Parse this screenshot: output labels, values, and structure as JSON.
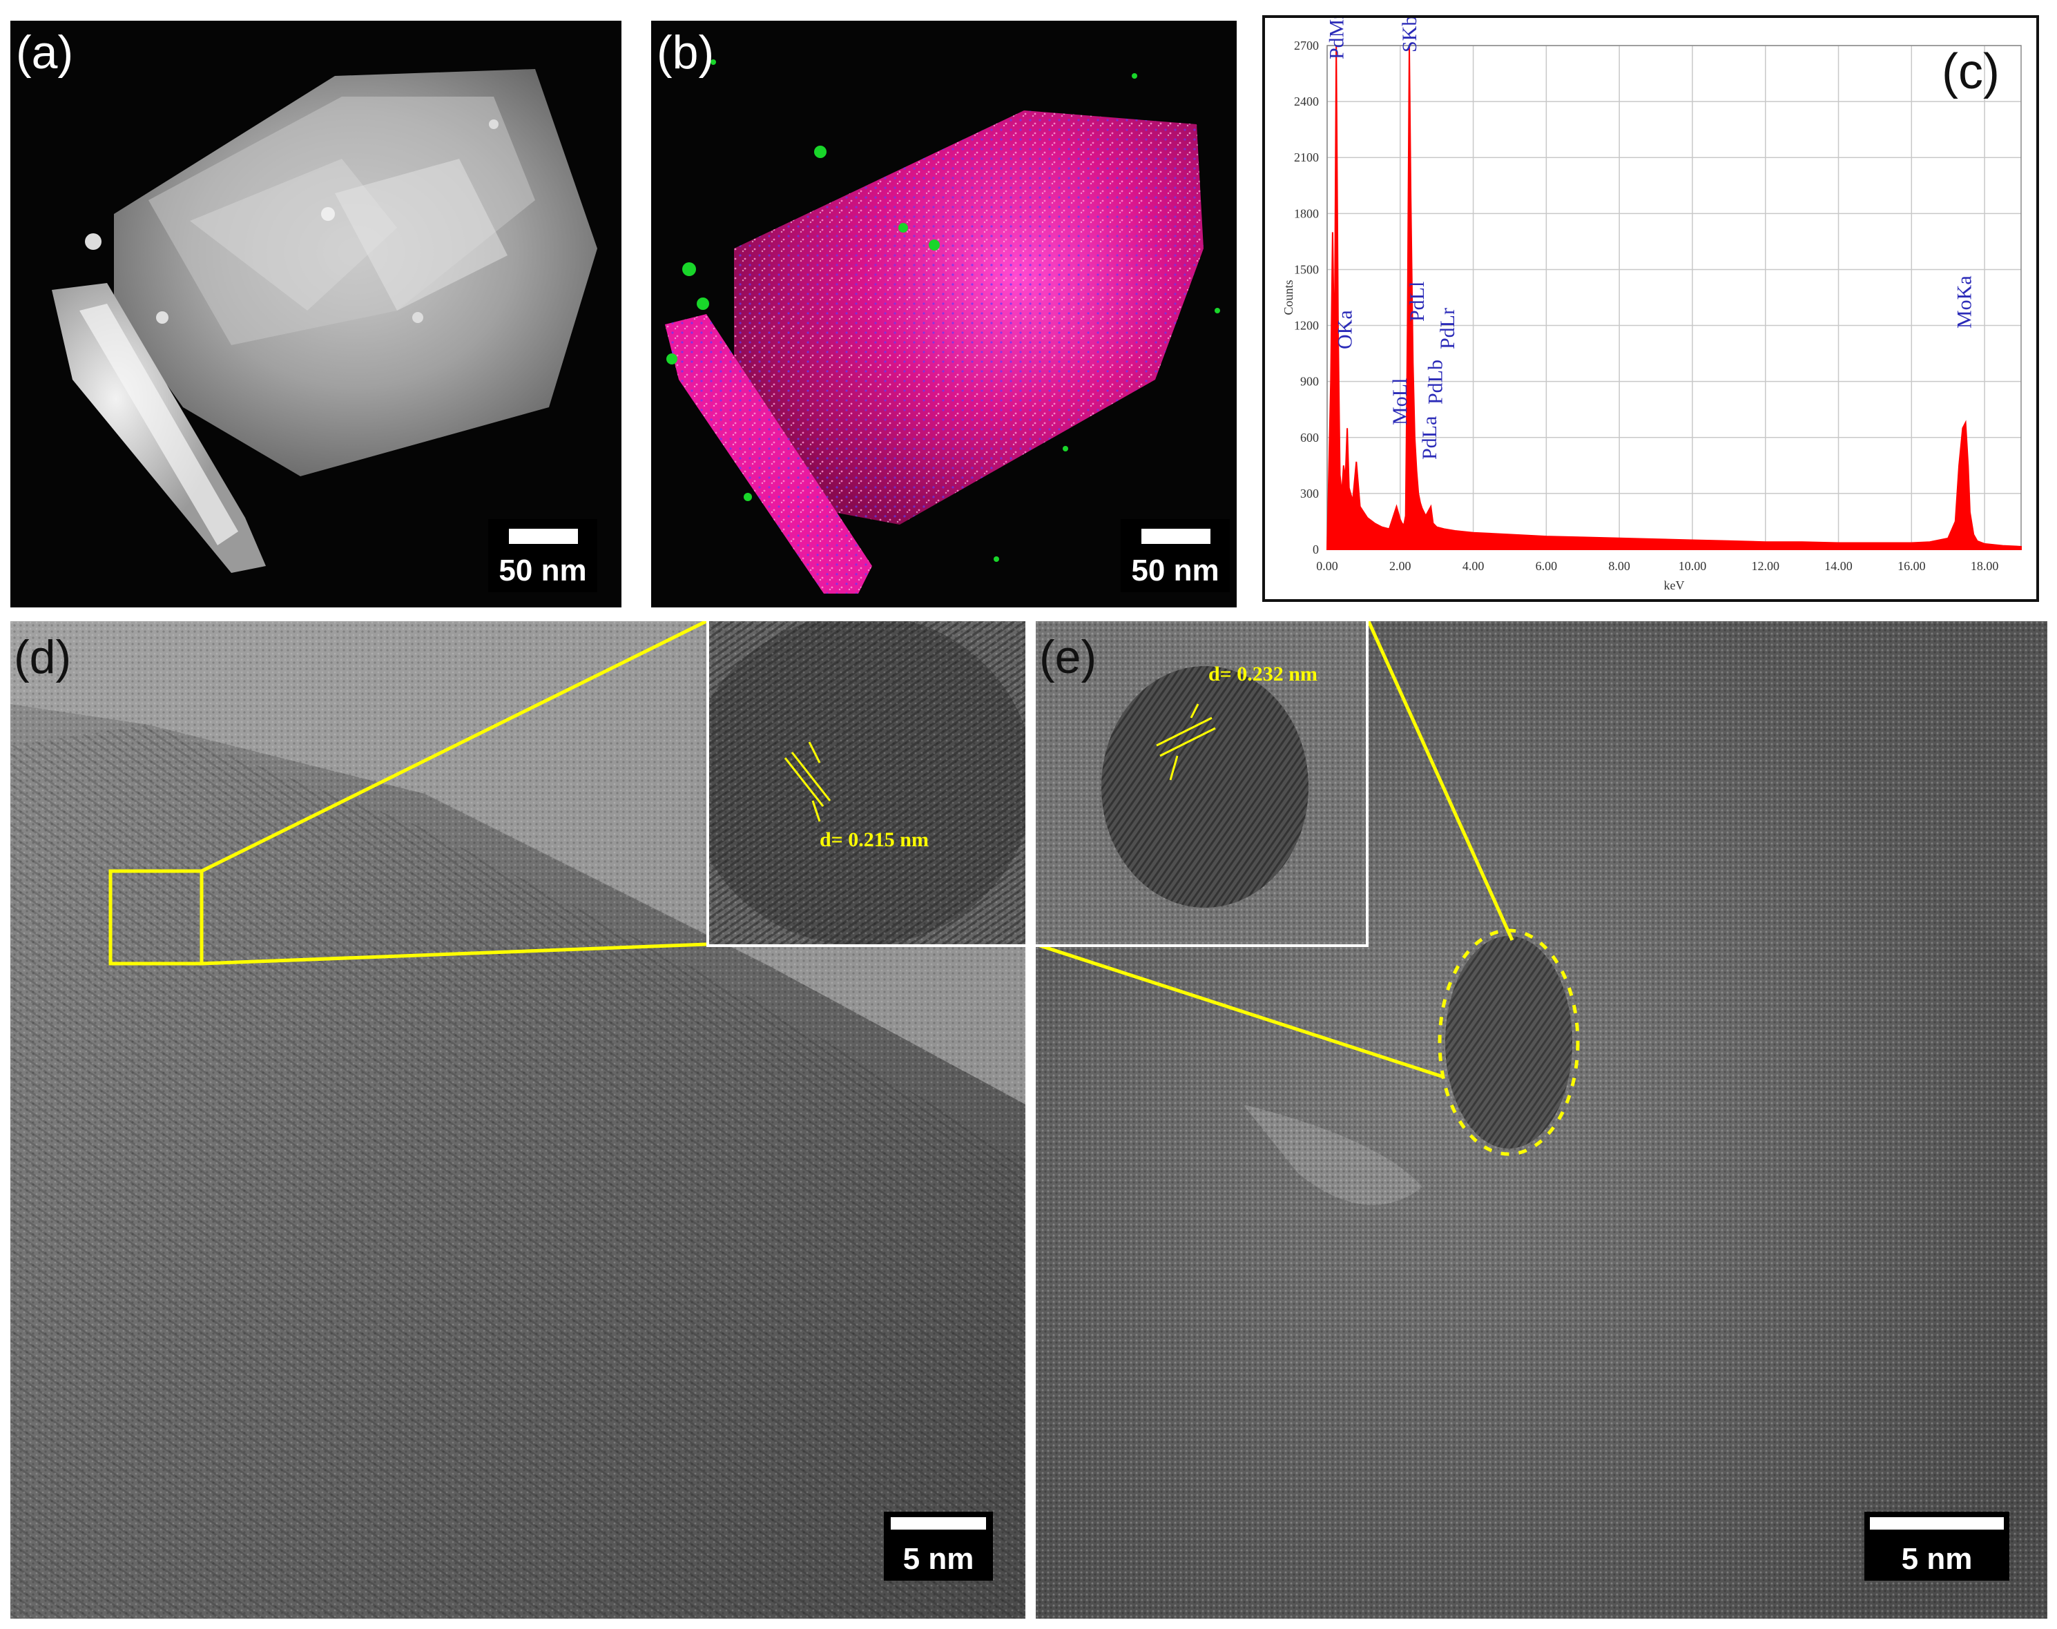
{
  "panels": {
    "a": {
      "label": "(a)",
      "scale_bar": "50 nm"
    },
    "b": {
      "label": "(b)",
      "scale_bar": "50 nm"
    },
    "c": {
      "label": "(c)"
    },
    "d": {
      "label": "(d)",
      "scale_bar": "5 nm",
      "inset_d_spacing": "d= 0.215 nm"
    },
    "e": {
      "label": "(e)",
      "scale_bar": "5 nm",
      "inset_d_spacing": "d= 0.232 nm"
    }
  },
  "chart_data": {
    "type": "line",
    "xlabel": "keV",
    "ylabel": "Counts",
    "xlim": [
      0,
      19
    ],
    "ylim": [
      0,
      2700
    ],
    "x_ticks": [
      "0.00",
      "2.00",
      "4.00",
      "6.00",
      "8.00",
      "10.00",
      "12.00",
      "14.00",
      "16.00",
      "18.00"
    ],
    "y_ticks": [
      "0",
      "300",
      "600",
      "900",
      "1200",
      "1500",
      "1800",
      "2100",
      "2400",
      "2700"
    ],
    "series_color": "#ff0000",
    "x": [
      0.0,
      0.1,
      0.15,
      0.2,
      0.25,
      0.3,
      0.35,
      0.4,
      0.45,
      0.5,
      0.55,
      0.6,
      0.7,
      0.8,
      0.9,
      1.0,
      1.1,
      1.3,
      1.5,
      1.7,
      1.9,
      2.0,
      2.05,
      2.1,
      2.15,
      2.2,
      2.25,
      2.29,
      2.32,
      2.35,
      2.4,
      2.45,
      2.5,
      2.55,
      2.6,
      2.7,
      2.84,
      2.9,
      3.0,
      3.2,
      3.5,
      4.0,
      5.0,
      6.0,
      7.0,
      8.0,
      9.0,
      10.0,
      11.0,
      12.0,
      13.0,
      14.0,
      15.0,
      16.0,
      16.5,
      17.0,
      17.2,
      17.3,
      17.4,
      17.48,
      17.55,
      17.6,
      17.7,
      17.8,
      18.0,
      18.5,
      19.0
    ],
    "y": [
      0,
      900,
      1700,
      1000,
      2700,
      1200,
      400,
      300,
      450,
      380,
      650,
      330,
      260,
      470,
      230,
      200,
      170,
      140,
      120,
      110,
      230,
      160,
      140,
      130,
      180,
      1200,
      2700,
      1900,
      1450,
      1000,
      600,
      420,
      300,
      250,
      220,
      180,
      230,
      140,
      120,
      110,
      100,
      90,
      80,
      70,
      65,
      60,
      55,
      50,
      45,
      40,
      40,
      35,
      35,
      35,
      40,
      60,
      150,
      450,
      650,
      680,
      450,
      200,
      80,
      45,
      30,
      20,
      15
    ],
    "peak_labels": [
      {
        "text": "PdMz",
        "x": 0.29
      },
      {
        "text": "OKa",
        "x": 0.52
      },
      {
        "text": "MoLl",
        "x": 2.02
      },
      {
        "text": "SKb MoLb MoLa SKa",
        "x": 2.29
      },
      {
        "text": "PdLl",
        "x": 2.5
      },
      {
        "text": "PdLa",
        "x": 2.84
      },
      {
        "text": "PdLb",
        "x": 3.0
      },
      {
        "text": "PdLr",
        "x": 3.33
      },
      {
        "text": "MoKa",
        "x": 17.48
      }
    ]
  }
}
